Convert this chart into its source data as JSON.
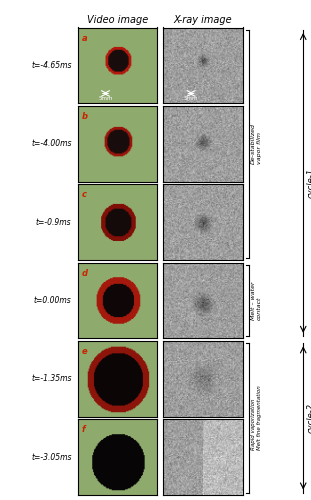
{
  "title_video": "Video image",
  "title_xray": "X-ray image",
  "time_labels": [
    "t=-4.65ms",
    "t=-4.00ms",
    "t=-0.9ms",
    "t=0.00ms",
    "t=-1.35ms",
    "t=-3.05ms"
  ],
  "panel_labels": [
    "a",
    "b",
    "c",
    "d",
    "e",
    "f"
  ],
  "right_label_destab": "De-stabilized\nvapor film",
  "right_label_melt": "Melt – water\ncontact",
  "right_label_rapid": "Rapid vaporization\nMelt fine fragmentation",
  "right_label_cycle1": "cycle-1",
  "right_label_cycle2": "cycle-2",
  "scale_bar_text": "5mm",
  "bg_color": "#ffffff",
  "panel_label_color": "#cc2200",
  "time_label_color": "#000000",
  "n_rows": 6,
  "fig_width": 3.11,
  "fig_height": 5.0
}
